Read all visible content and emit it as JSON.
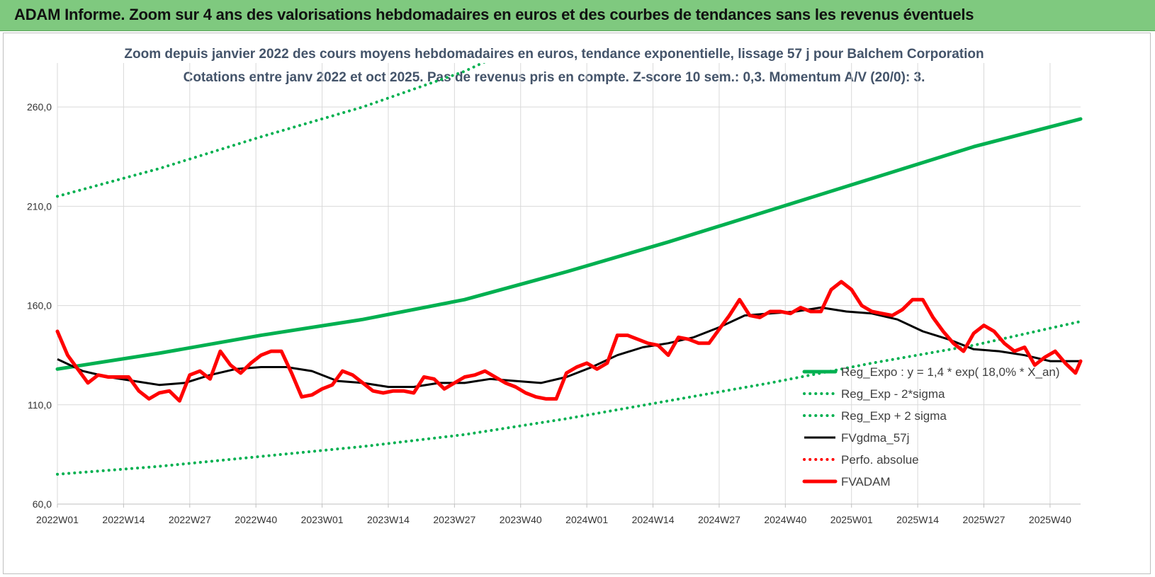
{
  "banner": {
    "title": "ADAM Informe. Zoom sur 4 ans des valorisations hebdomadaires en euros et des courbes de tendances sans les revenus éventuels"
  },
  "chart_data": {
    "type": "line",
    "title": "Zoom depuis janvier 2022 des cours moyens hebdomadaires en euros, tendance exponentielle, lissage 57 j pour Balchem Corporation",
    "subtitle": "Cotations entre janv 2022 et oct 2025. Pas de revenus pris en compte. Z-score 10 sem.: 0,3. Momentum A/V (20/0): 3.",
    "xlabel": "",
    "ylabel": "",
    "ylim": [
      60,
      290
    ],
    "yticks": [
      "60,0",
      "110,0",
      "160,0",
      "210,0",
      "260,0"
    ],
    "ytick_values": [
      60,
      110,
      160,
      210,
      260
    ],
    "xtick_labels": [
      "2022W01",
      "2022W14",
      "2022W27",
      "2022W40",
      "2023W01",
      "2023W14",
      "2023W27",
      "2023W40",
      "2024W01",
      "2024W14",
      "2024W27",
      "2024W40",
      "2025W01",
      "2025W14",
      "2025W27",
      "2025W40"
    ],
    "xtick_index": [
      0,
      13,
      26,
      39,
      52,
      65,
      78,
      91,
      104,
      117,
      130,
      143,
      156,
      169,
      182,
      195
    ],
    "n_weeks": 202,
    "grid": true,
    "legend_position": "right",
    "colors": {
      "reg_expo": "#00b050",
      "sigma": "#00b050",
      "fvgdma": "#000000",
      "perfo": "#ff0000",
      "fvadam": "#ff0000"
    },
    "series": [
      {
        "name": "Reg_Expo : y = 1,4 * exp( 18,0% * X_an)",
        "style": "solid-thick",
        "color": "#00b050",
        "x": [
          0,
          20,
          40,
          60,
          80,
          100,
          120,
          140,
          160,
          180,
          201
        ],
        "y": [
          128,
          136,
          145,
          153,
          163,
          177,
          192,
          208,
          224,
          240,
          254
        ]
      },
      {
        "name": "Reg_Exp - 2*sigma",
        "style": "dotted",
        "color": "#00b050",
        "x": [
          0,
          20,
          40,
          60,
          80,
          100,
          120,
          140,
          160,
          180,
          201
        ],
        "y": [
          75,
          79,
          84,
          89,
          95,
          103,
          112,
          121,
          131,
          140,
          152
        ]
      },
      {
        "name": "Reg_Exp + 2 sigma",
        "style": "dotted",
        "color": "#00b050",
        "x": [
          0,
          20,
          40,
          60,
          80,
          90,
          100,
          120,
          140,
          160,
          180,
          201
        ],
        "y": [
          215,
          229,
          245,
          260,
          278,
          290,
          290,
          290,
          290,
          290,
          290,
          290
        ]
      },
      {
        "name": "FVgdma_57j",
        "style": "solid",
        "color": "#000000",
        "x": [
          0,
          5,
          10,
          15,
          20,
          25,
          30,
          35,
          40,
          45,
          50,
          55,
          60,
          65,
          70,
          75,
          80,
          85,
          90,
          95,
          100,
          105,
          110,
          115,
          120,
          125,
          130,
          135,
          140,
          145,
          150,
          155,
          160,
          165,
          170,
          175,
          180,
          185,
          190,
          195,
          201
        ],
        "y": [
          133,
          127,
          124,
          122,
          120,
          121,
          125,
          128,
          129,
          129,
          127,
          122,
          121,
          119,
          119,
          121,
          121,
          123,
          122,
          121,
          124,
          129,
          135,
          139,
          141,
          144,
          149,
          155,
          156,
          157,
          159,
          157,
          156,
          153,
          147,
          143,
          138,
          137,
          135,
          132,
          132
        ]
      },
      {
        "name": "Perfo. absolue",
        "style": "dotted",
        "color": "#ff0000",
        "x": [],
        "y": []
      },
      {
        "name": "FVADAM",
        "style": "solid-thick",
        "color": "#ff0000",
        "x": [
          0,
          2,
          4,
          6,
          8,
          10,
          12,
          14,
          16,
          18,
          20,
          22,
          24,
          26,
          28,
          30,
          32,
          34,
          36,
          38,
          40,
          42,
          44,
          46,
          48,
          50,
          52,
          54,
          56,
          58,
          60,
          62,
          64,
          66,
          68,
          70,
          72,
          74,
          76,
          78,
          80,
          82,
          84,
          86,
          88,
          90,
          92,
          94,
          96,
          98,
          100,
          102,
          104,
          106,
          108,
          110,
          112,
          114,
          116,
          118,
          120,
          122,
          124,
          126,
          128,
          130,
          132,
          134,
          136,
          138,
          140,
          142,
          144,
          146,
          148,
          150,
          152,
          154,
          156,
          158,
          160,
          162,
          164,
          166,
          168,
          170,
          172,
          174,
          176,
          178,
          180,
          182,
          184,
          186,
          188,
          190,
          192,
          194,
          196,
          198,
          200,
          201
        ],
        "y": [
          147,
          135,
          128,
          121,
          125,
          124,
          124,
          124,
          117,
          113,
          116,
          117,
          112,
          125,
          127,
          123,
          137,
          130,
          126,
          131,
          135,
          137,
          137,
          126,
          114,
          115,
          118,
          120,
          127,
          125,
          121,
          117,
          116,
          117,
          117,
          116,
          124,
          123,
          118,
          121,
          124,
          125,
          127,
          124,
          121,
          119,
          116,
          114,
          113,
          113,
          126,
          129,
          131,
          128,
          131,
          145,
          145,
          143,
          141,
          140,
          135,
          144,
          143,
          141,
          141,
          148,
          155,
          163,
          155,
          154,
          157,
          157,
          156,
          159,
          157,
          157,
          168,
          172,
          168,
          160,
          157,
          156,
          155,
          158,
          163,
          163,
          154,
          147,
          141,
          137,
          146,
          150,
          147,
          141,
          137,
          139,
          130,
          134,
          137,
          131,
          126,
          132
        ]
      }
    ]
  }
}
